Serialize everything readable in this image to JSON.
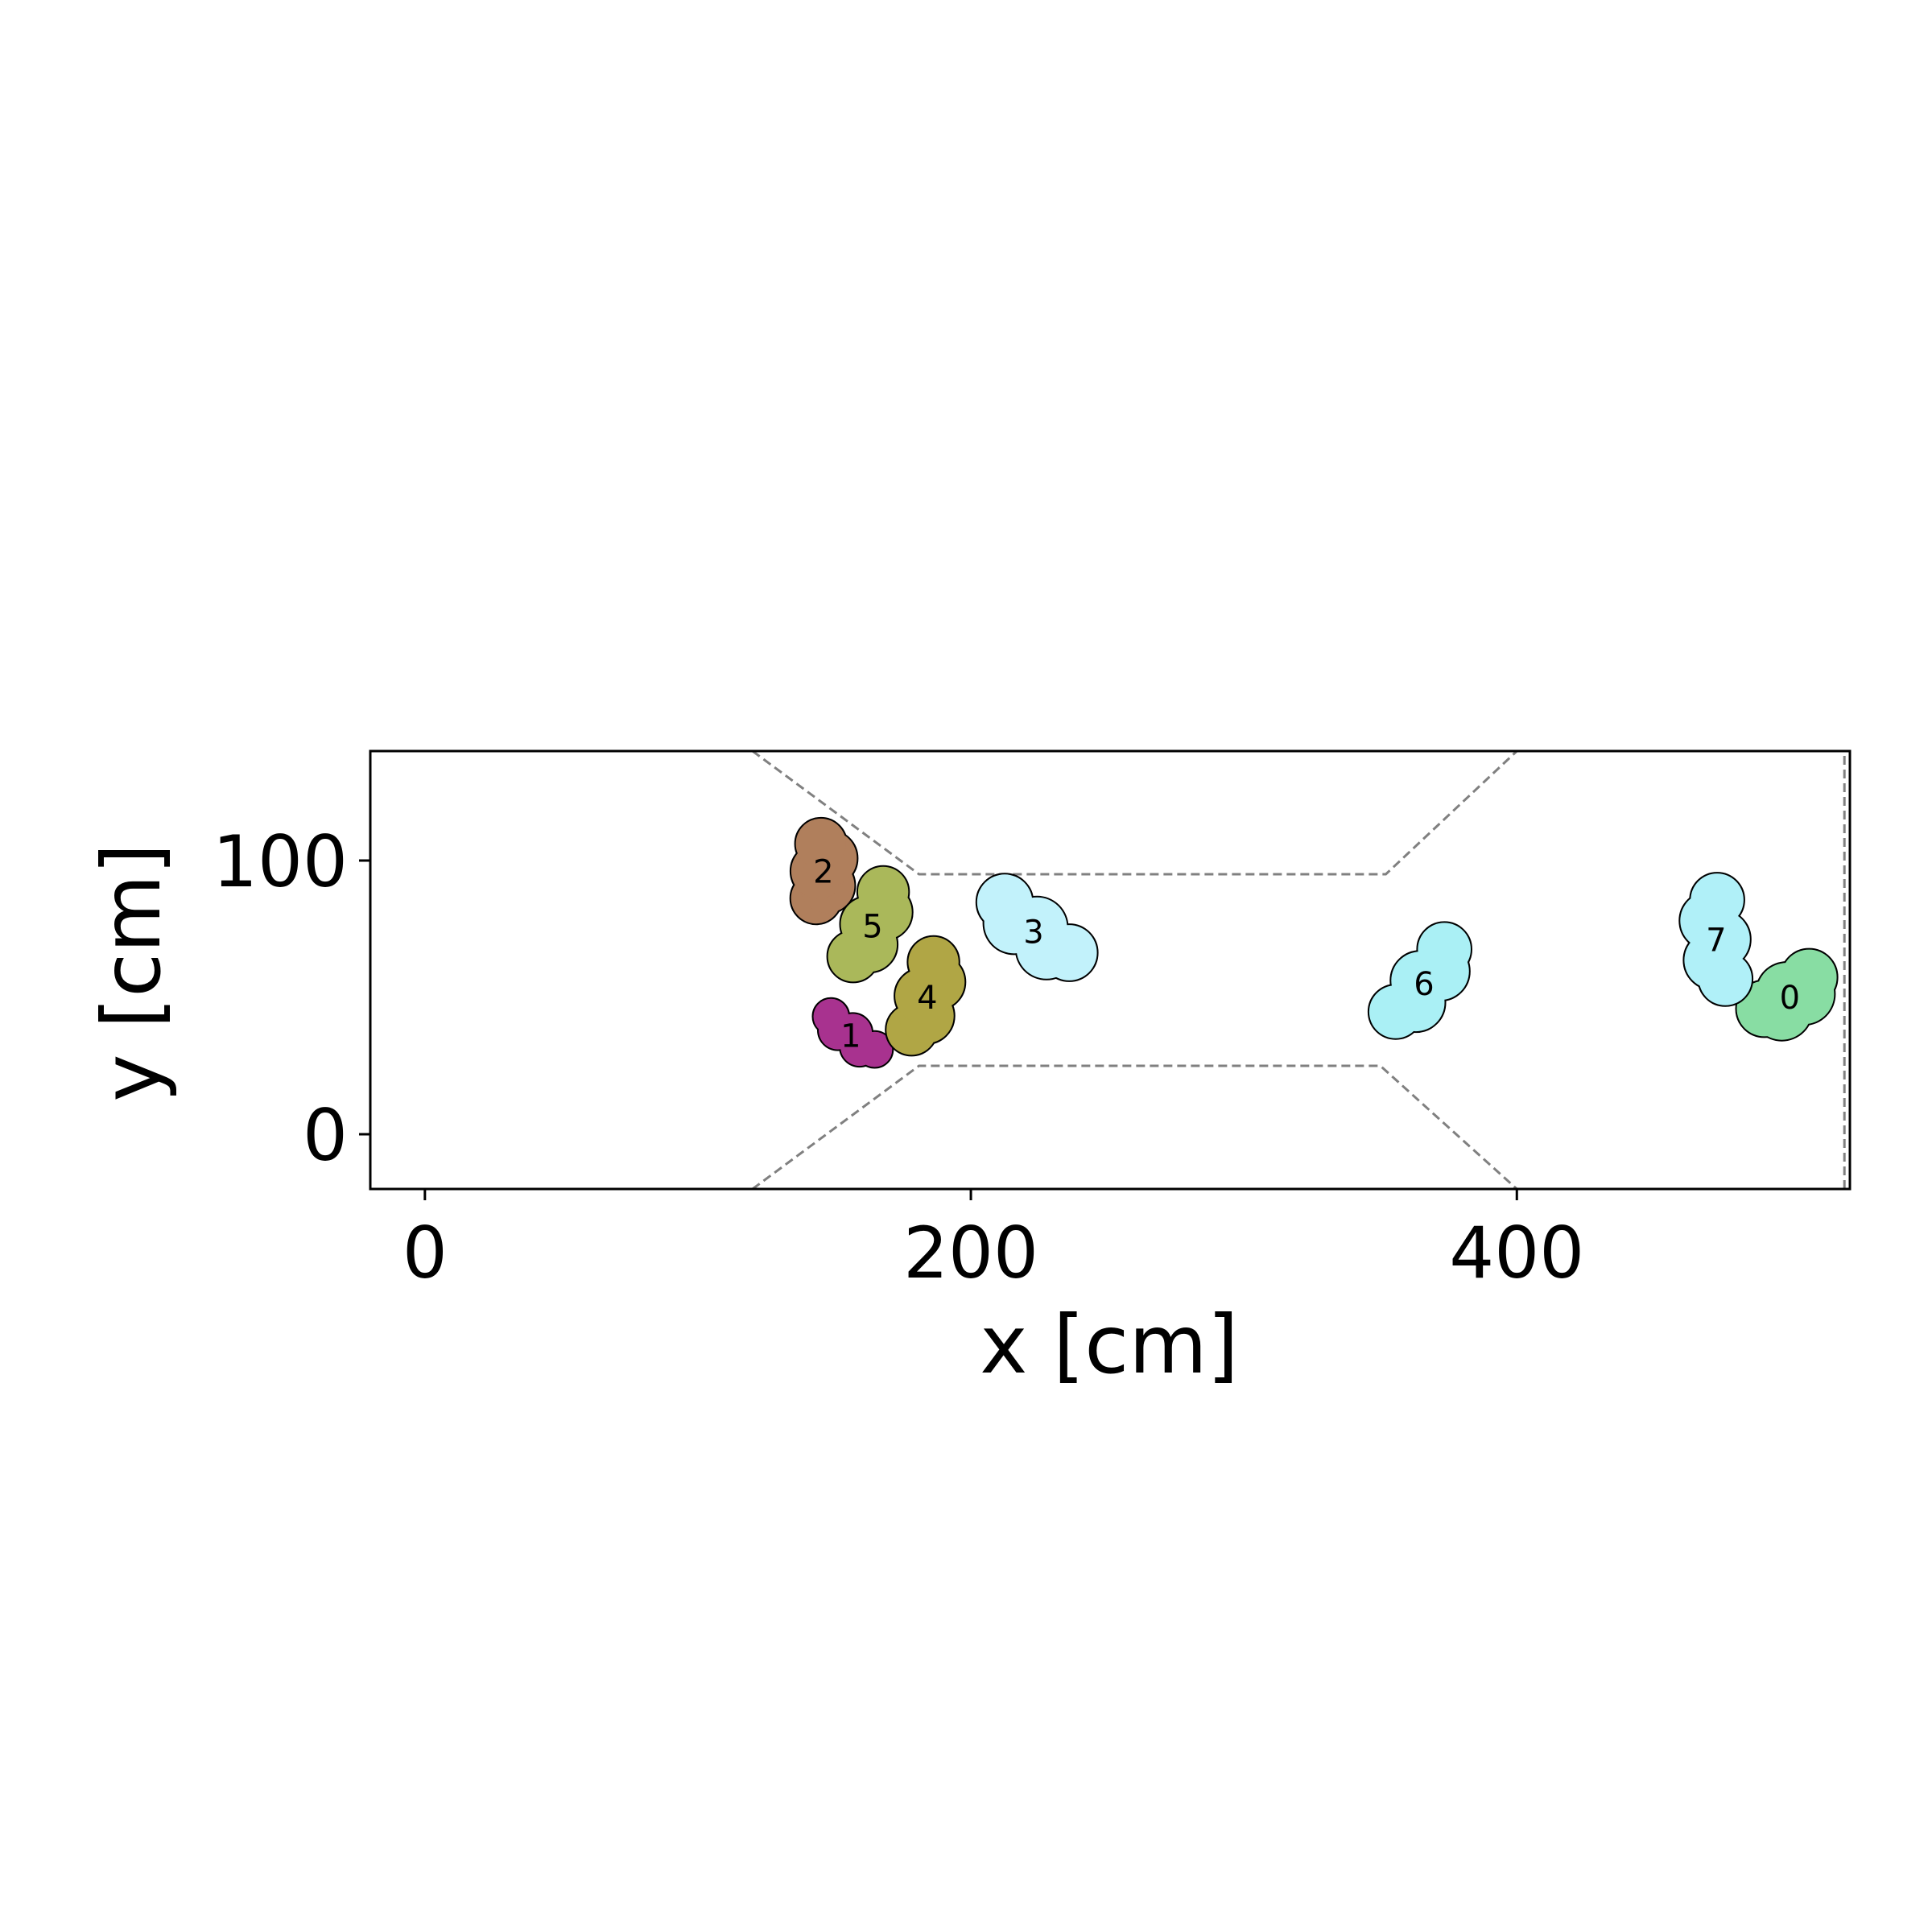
{
  "chart_data": {
    "type": "scatter",
    "title": "",
    "xlabel": "x [cm]",
    "ylabel": "y [cm]",
    "xlim": [
      -20,
      522
    ],
    "ylim": [
      -20,
      140
    ],
    "xticks": [
      0,
      200,
      400
    ],
    "yticks": [
      0,
      100
    ],
    "grid": false,
    "boundary_line_style": "dashed",
    "boundary_color": "#808080",
    "boundary": {
      "upper": [
        [
          120,
          140
        ],
        [
          181,
          95
        ],
        [
          352,
          95
        ],
        [
          400,
          140
        ]
      ],
      "lower": [
        [
          120,
          -20
        ],
        [
          181,
          25
        ],
        [
          350,
          25
        ],
        [
          400,
          -20
        ]
      ],
      "floor": [
        [
          -20,
          -20
        ],
        [
          522,
          -20
        ]
      ],
      "right_wall": [
        [
          520,
          -20
        ],
        [
          520,
          140
        ]
      ]
    },
    "agents": [
      {
        "id": "0",
        "color": "#88dda3",
        "x": 500,
        "y": 50,
        "angle_deg": 35,
        "length": 42,
        "width": 22
      },
      {
        "id": "1",
        "color": "#a8328f",
        "x": 156,
        "y": 36,
        "angle_deg": -37,
        "length": 34,
        "width": 14
      },
      {
        "id": "2",
        "color": "#b07f5c",
        "x": 146,
        "y": 96,
        "angle_deg": 85,
        "length": 40,
        "width": 20
      },
      {
        "id": "3",
        "color": "#c2f2fb",
        "x": 223,
        "y": 74,
        "angle_deg": -38,
        "length": 52,
        "width": 22
      },
      {
        "id": "4",
        "color": "#b0a645",
        "x": 184,
        "y": 50,
        "angle_deg": 72,
        "length": 46,
        "width": 20
      },
      {
        "id": "5",
        "color": "#aab85a",
        "x": 164,
        "y": 76,
        "angle_deg": 65,
        "length": 46,
        "width": 20
      },
      {
        "id": "6",
        "color": "#aaf0f5",
        "x": 366,
        "y": 55,
        "angle_deg": 52,
        "length": 50,
        "width": 21
      },
      {
        "id": "7",
        "color": "#b0f0f8",
        "x": 473,
        "y": 71,
        "angle_deg": -84,
        "length": 50,
        "width": 21
      }
    ]
  }
}
